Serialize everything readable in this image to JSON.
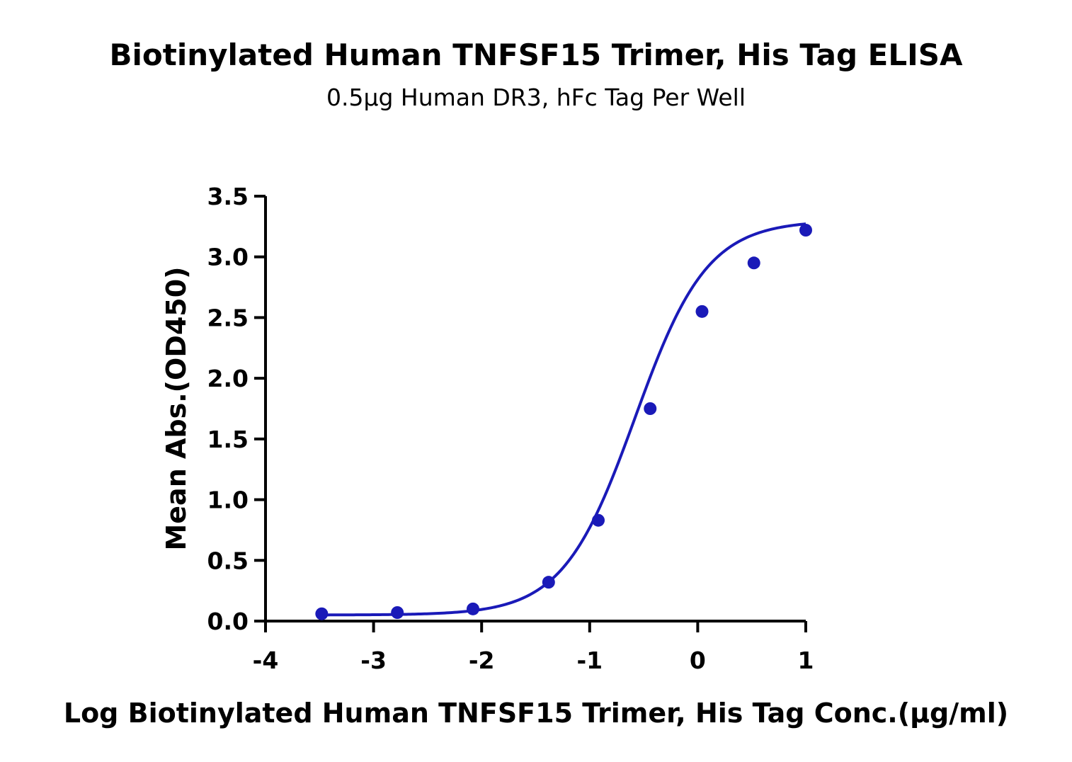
{
  "chart_data": {
    "type": "scatter",
    "title": "Biotinylated Human TNFSF15 Trimer, His Tag ELISA",
    "subtitle": "0.5µg Human DR3, hFc Tag Per Well",
    "xlabel": "Log Biotinylated Human TNFSF15 Trimer, His Tag Conc.(µg/ml)",
    "ylabel": "Mean Abs.(OD450)",
    "xlim": [
      -4,
      1
    ],
    "ylim": [
      0,
      3.5
    ],
    "x_ticks": [
      "-4",
      "-3",
      "-2",
      "-1",
      "0",
      "1"
    ],
    "y_ticks": [
      "0.0",
      "0.5",
      "1.0",
      "1.5",
      "2.0",
      "2.5",
      "3.0",
      "3.5"
    ],
    "grid": false,
    "legend": "none",
    "color": "#1a1ab8",
    "series": [
      {
        "x": [
          -3.48,
          -2.78,
          -2.08,
          -1.38,
          -0.92,
          -0.44,
          0.04,
          0.52,
          1.0
        ],
        "y": [
          0.06,
          0.07,
          0.1,
          0.32,
          0.83,
          1.75,
          2.55,
          2.95,
          3.22
        ],
        "fit": "4PL"
      }
    ]
  }
}
